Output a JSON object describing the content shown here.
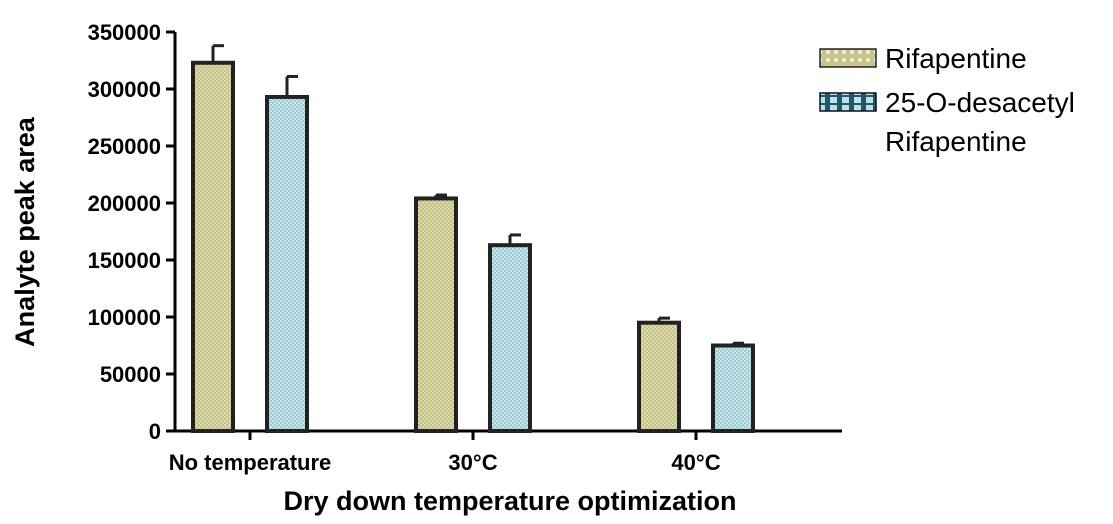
{
  "chart_data": {
    "type": "bar",
    "title": "",
    "xlabel": "Dry down temperature optimization",
    "ylabel": "Analyte peak area",
    "categories": [
      "No temperature",
      "30°C",
      "40°C"
    ],
    "ylim": [
      0,
      350000
    ],
    "yticks": [
      0,
      50000,
      100000,
      150000,
      200000,
      250000,
      300000,
      350000
    ],
    "ytick_labels": [
      "0",
      "50000",
      "100000",
      "150000",
      "200000",
      "250000",
      "300000",
      "350000"
    ],
    "grid": false,
    "legend_position": "top-right",
    "series": [
      {
        "name": "Rifapentine",
        "values": [
          323000,
          204000,
          95000
        ],
        "errors": [
          15000,
          3000,
          4000
        ],
        "color": "#c8c48c"
      },
      {
        "name": "25-O-desacetyl Rifapentine",
        "legend_lines": [
          "25-O-desacetyl",
          "Rifapentine"
        ],
        "values": [
          293000,
          163000,
          75000
        ],
        "errors": [
          18000,
          9000,
          2000
        ],
        "color": "#a9d4dc"
      }
    ]
  }
}
